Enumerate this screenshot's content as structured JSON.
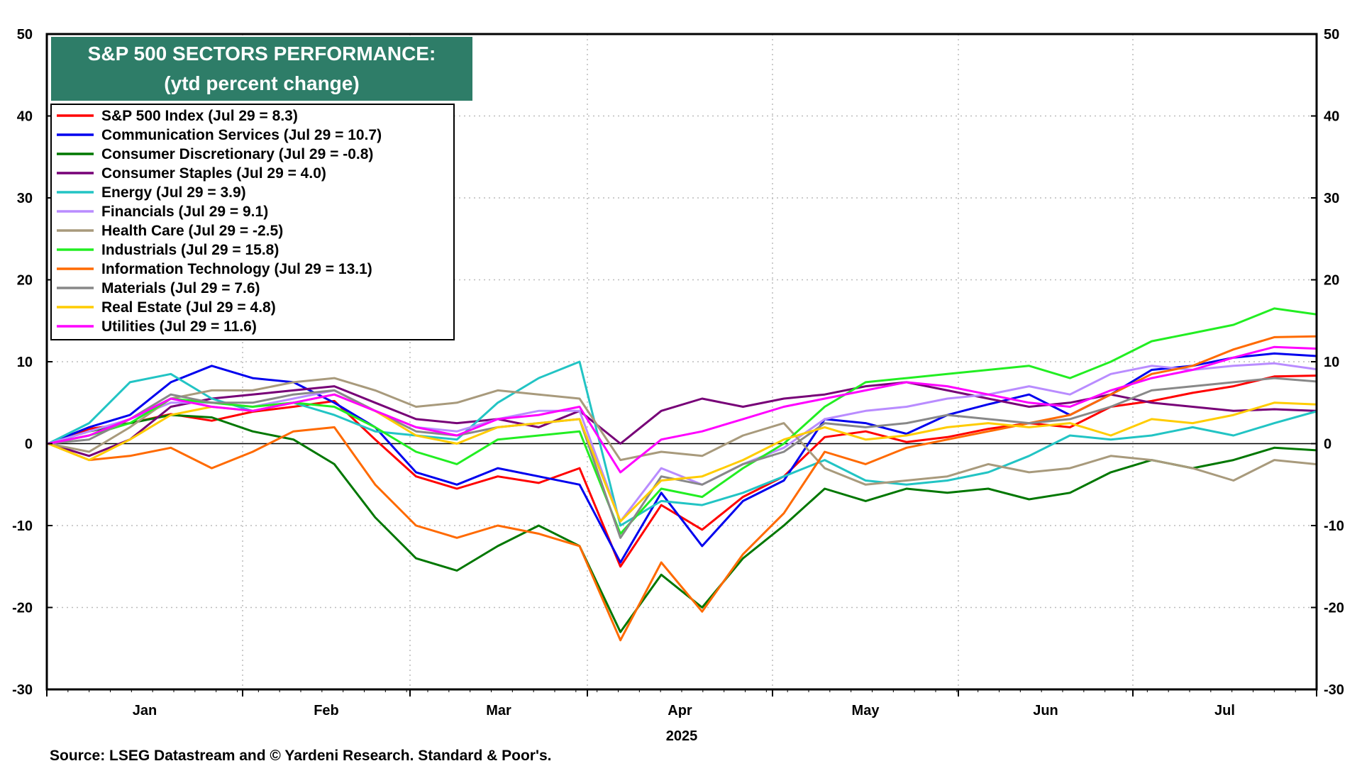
{
  "source_note": "Source: LSEG Datastream and © Yardeni Research. Standard & Poor's.",
  "chart_data": {
    "type": "line",
    "title": "S&P 500 SECTORS PERFORMANCE:",
    "subtitle": "(ytd percent change)",
    "xlabel": "2025",
    "ylabel": "",
    "ylim": [
      -30,
      50
    ],
    "yticks": [
      50,
      40,
      30,
      20,
      10,
      0,
      -10,
      -20,
      -30
    ],
    "month_labels": [
      "Jan",
      "Feb",
      "Mar",
      "Apr",
      "May",
      "Jun",
      "Jul"
    ],
    "grid": true,
    "legend_position": "top-left",
    "x": [
      "Jan 1",
      "Jan 8",
      "Jan 15",
      "Jan 22",
      "Jan 29",
      "Feb 5",
      "Feb 12",
      "Feb 19",
      "Feb 26",
      "Mar 5",
      "Mar 12",
      "Mar 19",
      "Mar 26",
      "Apr 2",
      "Apr 8",
      "Apr 9",
      "Apr 16",
      "Apr 23",
      "Apr 30",
      "May 7",
      "May 14",
      "May 21",
      "May 28",
      "Jun 4",
      "Jun 11",
      "Jun 18",
      "Jun 25",
      "Jul 2",
      "Jul 9",
      "Jul 16",
      "Jul 23",
      "Jul 29"
    ],
    "series": [
      {
        "name": "S&P 500 Index (Jul 29 = 8.3)",
        "color": "#ff0000",
        "values": [
          0,
          1.8,
          2.5,
          3.6,
          2.8,
          3.9,
          4.5,
          5.2,
          0.5,
          -4.0,
          -5.5,
          -4.0,
          -4.8,
          -3.0,
          -15.0,
          -7.5,
          -10.5,
          -6.5,
          -4.0,
          0.8,
          1.5,
          0.2,
          0.8,
          1.8,
          2.5,
          2.0,
          4.5,
          5.2,
          6.2,
          7.0,
          8.2,
          8.3
        ]
      },
      {
        "name": "Communication Services (Jul 29 = 10.7)",
        "color": "#0000ee",
        "values": [
          0,
          2.0,
          3.5,
          7.5,
          9.5,
          8.0,
          7.5,
          5.0,
          2.0,
          -3.5,
          -5.0,
          -3.0,
          -4.0,
          -5.0,
          -14.5,
          -6.0,
          -12.5,
          -7.0,
          -4.5,
          3.0,
          2.5,
          1.2,
          3.5,
          4.8,
          6.0,
          3.5,
          6.0,
          9.0,
          9.5,
          10.5,
          11.0,
          10.7
        ]
      },
      {
        "name": "Consumer Discretionary (Jul 29 = -0.8)",
        "color": "#007700",
        "values": [
          0,
          1.5,
          2.5,
          3.5,
          3.2,
          1.5,
          0.5,
          -2.5,
          -9.0,
          -14.0,
          -15.5,
          -12.5,
          -10.0,
          -12.5,
          -23.0,
          -16.0,
          -20.0,
          -14.0,
          -10.0,
          -5.5,
          -7.0,
          -5.5,
          -6.0,
          -5.5,
          -6.8,
          -6.0,
          -3.5,
          -2.0,
          -3.0,
          -2.0,
          -0.5,
          -0.8
        ]
      },
      {
        "name": "Consumer Staples (Jul 29 = 4.0)",
        "color": "#770077",
        "values": [
          0,
          -1.5,
          0.5,
          4.5,
          5.5,
          6.0,
          6.5,
          7.0,
          5.0,
          3.0,
          2.5,
          3.0,
          2.0,
          4.0,
          0.0,
          4.0,
          5.5,
          4.5,
          5.5,
          6.0,
          7.0,
          7.5,
          6.5,
          5.5,
          4.5,
          5.0,
          6.0,
          5.0,
          4.5,
          4.0,
          4.2,
          4.0
        ]
      },
      {
        "name": "Energy (Jul 29 = 3.9)",
        "color": "#22c4c4",
        "values": [
          0,
          2.5,
          7.5,
          8.5,
          5.5,
          4.0,
          5.0,
          3.5,
          1.5,
          1.0,
          0.5,
          5.0,
          8.0,
          10.0,
          -10.0,
          -7.0,
          -7.5,
          -6.0,
          -4.0,
          -2.0,
          -4.5,
          -5.0,
          -4.5,
          -3.5,
          -1.5,
          1.0,
          0.5,
          1.0,
          2.0,
          1.0,
          2.5,
          3.9
        ]
      },
      {
        "name": "Financials (Jul 29 = 9.1)",
        "color": "#b98cff",
        "values": [
          0,
          1.5,
          3.0,
          5.0,
          5.0,
          4.5,
          5.5,
          6.5,
          4.0,
          2.0,
          1.5,
          3.0,
          4.0,
          4.0,
          -9.5,
          -3.0,
          -5.0,
          -2.5,
          -0.5,
          3.0,
          4.0,
          4.5,
          5.5,
          6.0,
          7.0,
          6.0,
          8.5,
          9.5,
          9.0,
          9.5,
          9.8,
          9.1
        ]
      },
      {
        "name": "Health Care (Jul 29 = -2.5)",
        "color": "#a89a7c",
        "values": [
          0,
          -1.0,
          2.0,
          5.5,
          6.5,
          6.5,
          7.5,
          8.0,
          6.5,
          4.5,
          5.0,
          6.5,
          6.0,
          5.5,
          -2.0,
          -1.0,
          -1.5,
          1.0,
          2.5,
          -3.0,
          -5.0,
          -4.5,
          -4.0,
          -2.5,
          -3.5,
          -3.0,
          -1.5,
          -2.0,
          -3.0,
          -4.5,
          -2.0,
          -2.5
        ]
      },
      {
        "name": "Industrials (Jul 29 = 15.8)",
        "color": "#22ee22",
        "values": [
          0,
          1.0,
          2.5,
          5.5,
          5.0,
          4.5,
          5.0,
          4.5,
          2.0,
          -1.0,
          -2.5,
          0.5,
          1.0,
          1.5,
          -11.0,
          -5.5,
          -6.5,
          -3.0,
          0.0,
          4.5,
          7.5,
          8.0,
          8.5,
          9.0,
          9.5,
          8.0,
          10.0,
          12.5,
          13.5,
          14.5,
          16.5,
          15.8
        ]
      },
      {
        "name": "Information Technology (Jul 29 = 13.1)",
        "color": "#ff6a00",
        "values": [
          0,
          -2.0,
          -1.5,
          -0.5,
          -3.0,
          -1.0,
          1.5,
          2.0,
          -5.0,
          -10.0,
          -11.5,
          -10.0,
          -11.0,
          -12.5,
          -24.0,
          -14.5,
          -20.5,
          -13.5,
          -8.5,
          -1.0,
          -2.5,
          -0.5,
          0.5,
          1.5,
          2.5,
          3.5,
          6.0,
          8.5,
          9.5,
          11.5,
          13.0,
          13.1
        ]
      },
      {
        "name": "Materials (Jul 29 = 7.6)",
        "color": "#888888",
        "values": [
          0,
          0.5,
          3.0,
          6.0,
          5.0,
          5.0,
          6.0,
          6.5,
          4.0,
          1.5,
          1.0,
          2.0,
          2.5,
          3.0,
          -11.5,
          -4.0,
          -5.0,
          -2.5,
          -1.0,
          2.5,
          2.0,
          2.5,
          3.5,
          3.0,
          2.5,
          3.0,
          4.5,
          6.5,
          7.0,
          7.5,
          8.0,
          7.6
        ]
      },
      {
        "name": "Real Estate (Jul 29 = 4.8)",
        "color": "#ffcc00",
        "values": [
          0,
          -2.0,
          0.5,
          3.5,
          4.5,
          4.0,
          5.0,
          6.0,
          4.0,
          1.0,
          0.0,
          2.0,
          2.5,
          3.0,
          -9.5,
          -4.5,
          -4.0,
          -2.0,
          0.5,
          2.0,
          0.5,
          1.0,
          2.0,
          2.5,
          2.0,
          2.5,
          1.0,
          3.0,
          2.5,
          3.5,
          5.0,
          4.8
        ]
      },
      {
        "name": "Utilities (Jul 29 = 11.6)",
        "color": "#ff00ff",
        "values": [
          0,
          1.0,
          3.0,
          5.5,
          4.5,
          4.0,
          5.0,
          6.0,
          4.0,
          2.0,
          1.0,
          3.0,
          3.5,
          4.5,
          -3.5,
          0.5,
          1.5,
          3.0,
          4.5,
          5.5,
          6.5,
          7.5,
          7.0,
          6.0,
          5.0,
          4.5,
          6.5,
          8.0,
          9.0,
          10.5,
          11.8,
          11.6
        ]
      }
    ]
  }
}
